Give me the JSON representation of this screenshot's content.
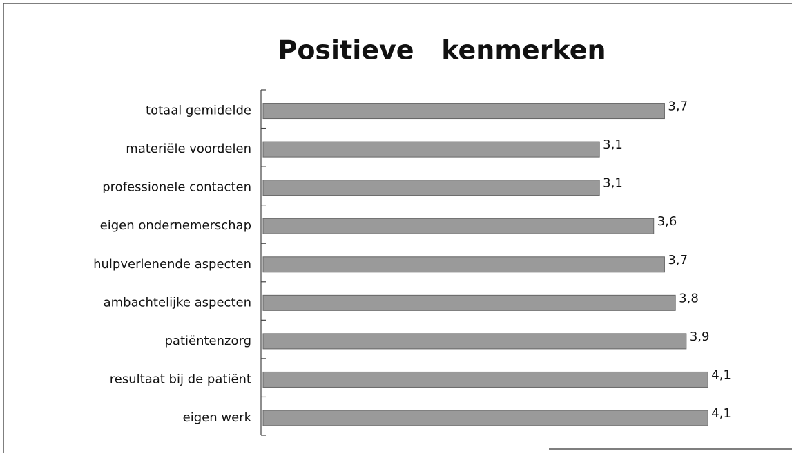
{
  "chart_data": {
    "type": "bar",
    "orientation": "horizontal",
    "title": "Positieve   kenmerken",
    "categories": [
      "totaal gemidelde",
      "materiële voordelen",
      "professionele contacten",
      "eigen ondernemerschap",
      "hulpverlenende aspecten",
      "ambachtelijke aspecten",
      "patiëntenzorg",
      "resultaat bij de patiënt",
      "eigen werk"
    ],
    "values": [
      3.7,
      3.1,
      3.1,
      3.6,
      3.7,
      3.8,
      3.9,
      4.1,
      4.1
    ],
    "value_labels": [
      "3,7",
      "3,1",
      "3,1",
      "3,6",
      "3,7",
      "3,8",
      "3,9",
      "4,1",
      "4,1"
    ],
    "color": "#9a9a9a",
    "xlim": [
      0,
      4.2
    ]
  }
}
